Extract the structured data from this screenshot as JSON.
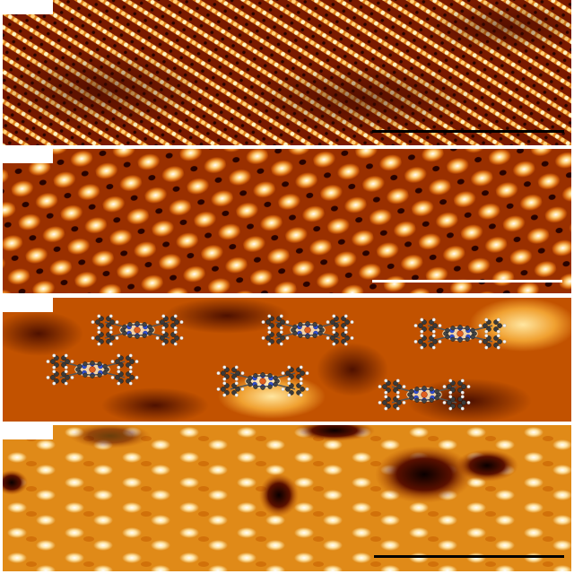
{
  "figure": {
    "panels": [
      {
        "id": "a",
        "pattern": "atomic-lattice-stripes",
        "scalebar_color": "#000000"
      },
      {
        "id": "b",
        "pattern": "bright-protrusion-lattice",
        "scalebar_color": "#ffffff"
      },
      {
        "id": "c",
        "pattern": "molecular-overlay",
        "molecule_model": "porphyrin-ball-and-stick",
        "molecule_count": 6
      },
      {
        "id": "d",
        "pattern": "molecular-lattice-with-vacancies",
        "scalebar_color": "#000000"
      }
    ],
    "colormap": [
      "#1a0000",
      "#6b1500",
      "#b84a00",
      "#e88a1a",
      "#ffd27a",
      "#ffffff"
    ]
  }
}
